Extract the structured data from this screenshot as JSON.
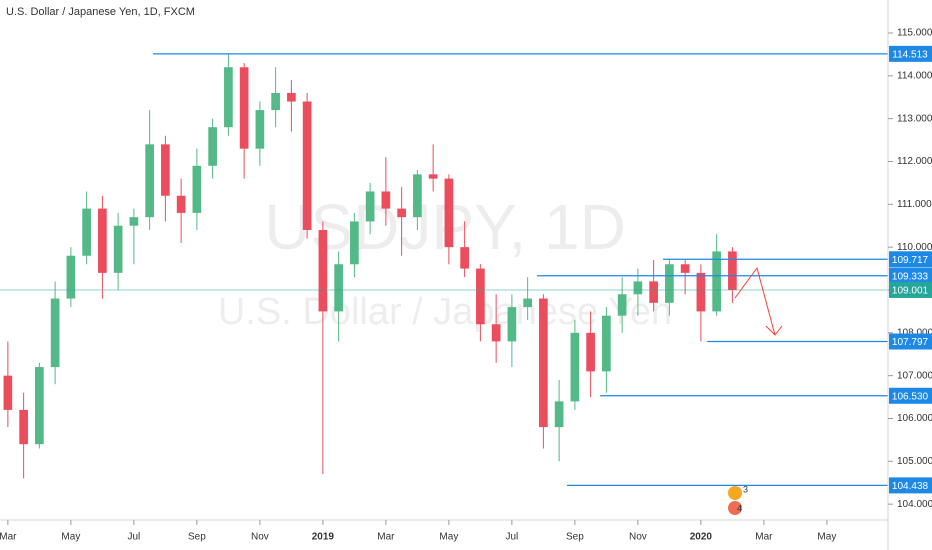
{
  "chart_data": {
    "type": "candlestick",
    "title": "U.S. Dollar / Japanese Yen, 1D, FXCM",
    "watermark": [
      "USDJPY, 1D",
      "U.S. Dollar / Japanese Yen"
    ],
    "up_color": "#53b987",
    "down_color": "#eb4d5c",
    "x": [
      2.0,
      2.5,
      3.0,
      3.5,
      4.0,
      4.5,
      5.0,
      5.5,
      6.0,
      6.5,
      7.0,
      7.5,
      8.0,
      8.5,
      9.0,
      9.5,
      10.0,
      10.5,
      11.0,
      11.5,
      12.0,
      12.5,
      13.0,
      13.5,
      14.0,
      14.5,
      15.0,
      15.5,
      16.0,
      16.5,
      17.0,
      17.5,
      18.0,
      18.5,
      19.0,
      19.5,
      20.0,
      20.5,
      21.0,
      21.5,
      22.0,
      22.5,
      23.0,
      23.5,
      24.0,
      24.5,
      25.0
    ],
    "open": [
      107.0,
      106.2,
      105.4,
      107.2,
      108.8,
      109.8,
      110.9,
      109.4,
      110.5,
      110.7,
      112.4,
      111.2,
      110.8,
      111.9,
      112.8,
      114.2,
      112.3,
      113.2,
      113.6,
      113.4,
      110.4,
      108.5,
      109.6,
      110.6,
      111.3,
      110.9,
      110.7,
      111.7,
      111.6,
      110.0,
      109.5,
      108.2,
      107.8,
      108.6,
      108.8,
      105.8,
      106.4,
      108.0,
      107.1,
      108.4,
      108.9,
      109.2,
      108.7,
      109.6,
      109.4,
      108.5,
      109.9
    ],
    "high": [
      107.8,
      106.6,
      107.3,
      109.2,
      110.0,
      111.3,
      111.2,
      110.8,
      110.9,
      113.2,
      112.6,
      111.6,
      112.3,
      113.0,
      114.5,
      114.3,
      113.4,
      114.2,
      113.9,
      113.6,
      110.6,
      109.9,
      110.8,
      111.5,
      112.1,
      111.4,
      111.8,
      112.4,
      111.7,
      110.6,
      109.6,
      108.9,
      108.9,
      109.3,
      108.9,
      106.9,
      108.3,
      108.5,
      108.6,
      109.3,
      109.5,
      109.7,
      109.7,
      109.7,
      109.6,
      110.3,
      110.0
    ],
    "low": [
      105.8,
      104.6,
      105.3,
      106.8,
      108.6,
      109.6,
      108.8,
      109.0,
      109.6,
      110.4,
      110.6,
      110.1,
      110.4,
      111.6,
      112.6,
      111.6,
      111.9,
      112.8,
      112.7,
      110.2,
      104.7,
      107.8,
      109.3,
      110.3,
      110.5,
      109.8,
      110.4,
      111.3,
      109.6,
      109.3,
      107.8,
      107.3,
      107.2,
      108.3,
      105.3,
      105.0,
      106.2,
      106.5,
      106.6,
      108.0,
      108.4,
      108.5,
      108.4,
      108.9,
      107.8,
      108.4,
      108.7
    ],
    "close": [
      106.2,
      105.4,
      107.2,
      108.8,
      109.8,
      110.9,
      109.4,
      110.5,
      110.7,
      112.4,
      111.2,
      110.8,
      111.9,
      112.8,
      114.2,
      112.3,
      113.2,
      113.6,
      113.4,
      110.4,
      108.5,
      109.6,
      110.6,
      111.3,
      110.9,
      110.7,
      111.7,
      111.6,
      110.0,
      109.5,
      108.2,
      107.8,
      108.6,
      108.8,
      105.8,
      106.4,
      108.0,
      107.1,
      108.4,
      108.9,
      109.2,
      108.7,
      109.6,
      109.4,
      108.5,
      109.9,
      109.0
    ],
    "xlim": [
      1.75,
      29.94
    ],
    "xticks": [
      {
        "value": 2,
        "label": "Mar"
      },
      {
        "value": 4,
        "label": "May"
      },
      {
        "value": 6,
        "label": "Jul"
      },
      {
        "value": 8,
        "label": "Sep"
      },
      {
        "value": 10,
        "label": "Nov"
      },
      {
        "value": 12,
        "label": "2019"
      },
      {
        "value": 14,
        "label": "Mar"
      },
      {
        "value": 16,
        "label": "May"
      },
      {
        "value": 18,
        "label": "Jul"
      },
      {
        "value": 20,
        "label": "Sep"
      },
      {
        "value": 22,
        "label": "Nov"
      },
      {
        "value": 24,
        "label": "2020"
      },
      {
        "value": 26,
        "label": "Mar"
      },
      {
        "value": 28,
        "label": "May"
      }
    ],
    "ylim": [
      103.63,
      115.77
    ],
    "yticks": [
      {
        "value": 104,
        "label": "104.000"
      },
      {
        "value": 105,
        "label": "105.000"
      },
      {
        "value": 106,
        "label": "106.000"
      },
      {
        "value": 107,
        "label": "107.000"
      },
      {
        "value": 108,
        "label": "108.000"
      },
      {
        "value": 109,
        "label": "109.000"
      },
      {
        "value": 110,
        "label": "110.000"
      },
      {
        "value": 111,
        "label": "111.000"
      },
      {
        "value": 112,
        "label": "112.000"
      },
      {
        "value": 113,
        "label": "113.000"
      },
      {
        "value": 114,
        "label": "114.000"
      },
      {
        "value": 115,
        "label": "115.000"
      }
    ],
    "level_color": "#1e88e5",
    "levels": [
      {
        "value": 114.513,
        "start_x": 6.61
      },
      {
        "value": 109.717,
        "start_x": 22.8
      },
      {
        "value": 109.333,
        "start_x": 18.8
      },
      {
        "value": 107.797,
        "start_x": 24.2
      },
      {
        "value": {
          "value": 106.53,
          "label": "106.530"
        },
        "start_x": 20.8
      },
      {
        "value": 104.438,
        "start_x": 19.75
      }
    ],
    "current_price": {
      "value": 109.001,
      "color": "#26a69a"
    },
    "badges": [
      "3",
      "4"
    ]
  }
}
